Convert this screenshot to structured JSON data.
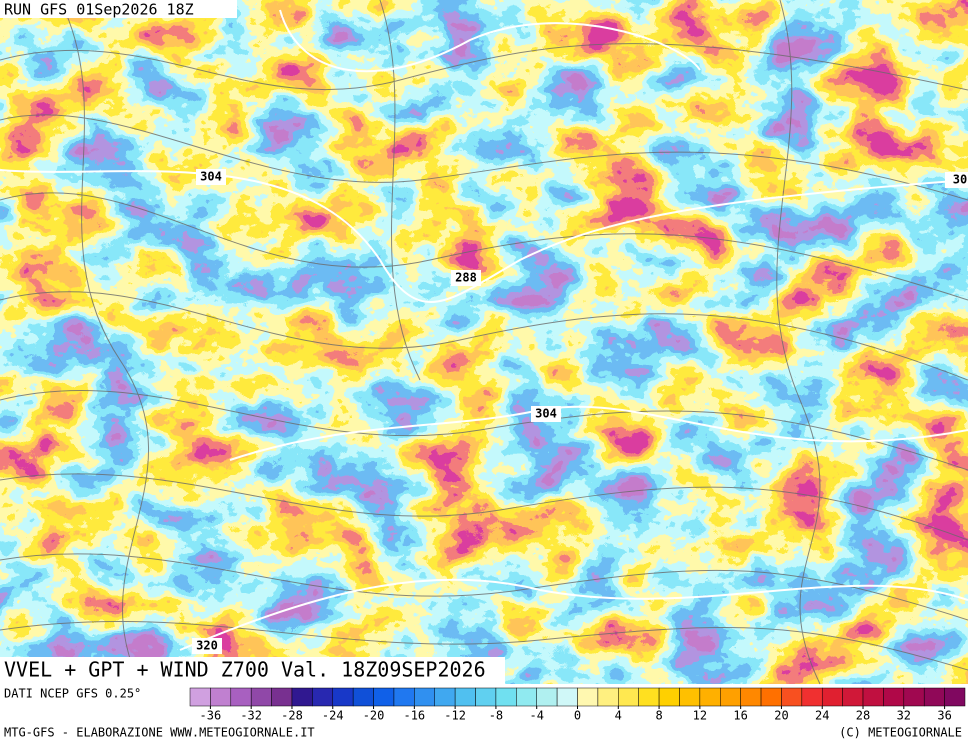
{
  "header": {
    "run": "RUN GFS 01Sep2026 18Z"
  },
  "map": {
    "contour_labels": [
      "304",
      "288",
      "304",
      "320",
      "30"
    ]
  },
  "footer": {
    "title": "VVEL + GPT + WIND Z700 Val. 18Z09SEP2026",
    "source": "DATI NCEP GFS 0.25°",
    "credit": "MTG-GFS - ELABORAZIONE WWW.METEOGIORNALE.IT",
    "copyright": "(C) METEOGIORNALE"
  },
  "colorbar": {
    "range": [
      -38,
      38
    ],
    "ticks": [
      -36,
      -32,
      -28,
      -24,
      -20,
      -16,
      -12,
      -8,
      -4,
      0,
      4,
      8,
      12,
      16,
      20,
      24,
      28,
      32,
      36
    ],
    "colors": [
      "#d0a0e0",
      "#c080d0",
      "#a860c0",
      "#9048a8",
      "#783090",
      "#301890",
      "#2828b0",
      "#1838c8",
      "#1050d8",
      "#1060e8",
      "#2078f0",
      "#3090f0",
      "#40a8f0",
      "#50c0f0",
      "#60d0f0",
      "#70e0f0",
      "#90eaf0",
      "#b0f0f0",
      "#d0f8f8",
      "#fff8b0",
      "#fff080",
      "#ffe850",
      "#ffe020",
      "#ffd000",
      "#ffc000",
      "#ffb000",
      "#ffa000",
      "#ff8800",
      "#ff7000",
      "#f85020",
      "#f03030",
      "#e02030",
      "#d01838",
      "#c01040",
      "#b00848",
      "#a00850",
      "#900858",
      "#800860"
    ]
  }
}
